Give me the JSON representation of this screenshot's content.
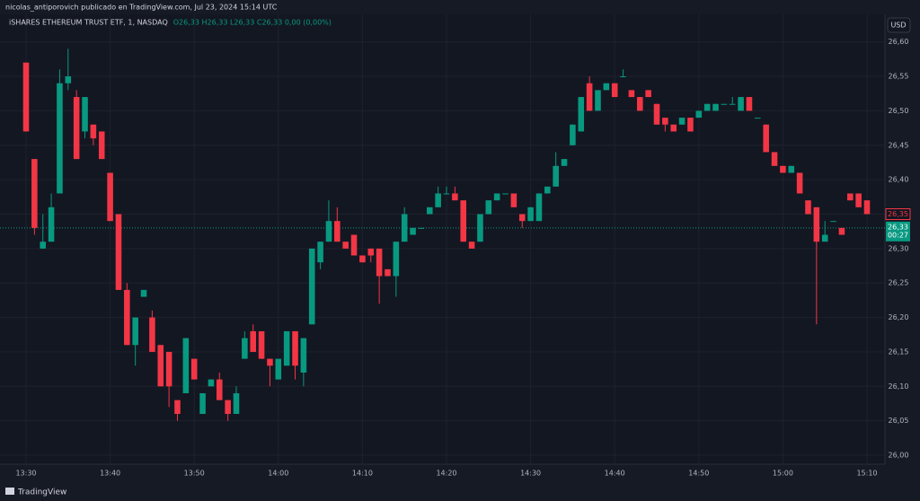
{
  "header": "nicolas_antiporovich publicado en TradingView.com, Jul 23, 2024 15:14 UTC",
  "footer": "TradingView",
  "chart_data": {
    "type": "candlestick",
    "title": "iSHARES ETHEREUM TRUST ETF, 1, NASDAQ",
    "ohlc_legend": "O26,33 H26,33 L26,33 C26,33 0,00 (0,00%)",
    "currency": "USD",
    "up_color": "#089981",
    "down_color": "#f23645",
    "grid": true,
    "categories": [
      "13:30",
      null,
      null,
      null,
      null,
      null,
      null,
      null,
      null,
      null,
      "13:40",
      null,
      null,
      null,
      null,
      null,
      null,
      null,
      null,
      null,
      "13:50",
      null,
      null,
      null,
      null,
      null,
      null,
      null,
      null,
      null,
      "14:00",
      null,
      null,
      null,
      null,
      null,
      null,
      null,
      null,
      null,
      "14:10",
      null,
      null,
      null,
      null,
      null,
      null,
      null,
      null,
      null,
      "14:20",
      null,
      null,
      null,
      null,
      null,
      null,
      null,
      null,
      null,
      "14:30",
      null,
      null,
      null,
      null,
      null,
      null,
      null,
      null,
      null,
      "14:40",
      null,
      null,
      null,
      null,
      null,
      null,
      null,
      null,
      null,
      "14:50",
      null,
      null,
      null,
      null,
      null,
      null,
      null,
      null,
      null,
      "15:00",
      null,
      null,
      null,
      null,
      null,
      null,
      null,
      null,
      null,
      "15:10"
    ],
    "open": [
      26.57,
      26.43,
      26.3,
      26.31,
      26.38,
      26.54,
      26.52,
      26.47,
      26.48,
      26.47,
      26.41,
      26.35,
      26.24,
      26.16,
      26.23,
      26.2,
      26.16,
      26.15,
      26.08,
      26.09,
      26.14,
      26.06,
      26.1,
      26.11,
      26.08,
      26.06,
      26.14,
      26.18,
      26.18,
      26.14,
      26.11,
      26.13,
      26.18,
      26.12,
      26.19,
      26.28,
      26.31,
      26.34,
      26.31,
      26.32,
      26.29,
      26.3,
      26.3,
      26.27,
      26.26,
      26.31,
      26.32,
      26.33,
      26.35,
      26.36,
      26.38,
      26.38,
      26.37,
      26.31,
      26.31,
      26.35,
      26.37,
      26.38,
      26.38,
      26.35,
      26.34,
      26.34,
      26.38,
      26.39,
      26.42,
      26.45,
      26.47,
      26.54,
      26.5,
      26.53,
      26.54,
      26.55,
      26.53,
      26.52,
      26.53,
      26.51,
      26.49,
      26.48,
      26.48,
      26.49,
      26.49,
      26.5,
      26.5,
      26.51,
      26.51,
      26.5,
      26.52,
      26.49,
      26.48,
      26.44,
      26.42,
      26.41,
      26.41,
      26.37,
      26.36,
      26.31,
      26.34,
      26.33,
      26.38,
      26.38,
      26.37
    ],
    "high": [
      26.57,
      26.43,
      26.35,
      26.38,
      26.56,
      26.59,
      26.53,
      26.52,
      26.48,
      26.47,
      26.41,
      26.35,
      26.25,
      26.2,
      26.24,
      26.21,
      26.16,
      26.15,
      26.08,
      26.17,
      26.14,
      26.09,
      26.11,
      26.12,
      26.08,
      26.1,
      26.18,
      26.19,
      26.18,
      26.14,
      26.14,
      26.18,
      26.18,
      26.17,
      26.3,
      26.31,
      26.37,
      26.36,
      26.31,
      26.32,
      26.29,
      26.3,
      26.3,
      26.27,
      26.31,
      26.36,
      26.33,
      26.33,
      26.36,
      26.39,
      26.39,
      26.39,
      26.37,
      26.31,
      26.35,
      26.37,
      26.38,
      26.38,
      26.38,
      26.35,
      26.36,
      26.38,
      26.39,
      26.44,
      26.43,
      26.48,
      26.52,
      26.55,
      26.53,
      26.54,
      26.54,
      26.56,
      26.53,
      26.52,
      26.53,
      26.51,
      26.49,
      26.48,
      26.49,
      26.49,
      26.5,
      26.51,
      26.51,
      26.51,
      26.52,
      26.52,
      26.52,
      26.49,
      26.48,
      26.44,
      26.42,
      26.42,
      26.41,
      26.37,
      26.36,
      26.34,
      26.34,
      26.33,
      26.38,
      26.38,
      26.37
    ],
    "low": [
      26.47,
      26.32,
      26.3,
      26.31,
      26.38,
      26.53,
      26.43,
      26.46,
      26.45,
      26.43,
      26.34,
      26.24,
      26.16,
      26.13,
      26.23,
      26.15,
      26.1,
      26.07,
      26.05,
      26.09,
      26.11,
      26.06,
      26.1,
      26.08,
      26.05,
      26.06,
      26.14,
      26.15,
      26.14,
      26.1,
      26.11,
      26.13,
      26.11,
      26.1,
      26.19,
      26.27,
      26.31,
      26.31,
      26.3,
      26.29,
      26.28,
      26.28,
      26.22,
      26.26,
      26.23,
      26.31,
      26.32,
      26.33,
      26.35,
      26.36,
      26.38,
      26.37,
      26.31,
      26.3,
      26.31,
      26.35,
      26.37,
      26.38,
      26.36,
      26.33,
      26.34,
      26.34,
      26.38,
      26.39,
      26.42,
      26.45,
      26.47,
      26.5,
      26.5,
      26.53,
      26.52,
      26.55,
      26.52,
      26.5,
      26.52,
      26.48,
      26.47,
      26.47,
      26.48,
      26.47,
      26.49,
      26.5,
      26.5,
      26.51,
      26.51,
      26.5,
      26.5,
      26.49,
      26.44,
      26.42,
      26.41,
      26.41,
      26.38,
      26.35,
      26.19,
      26.31,
      26.34,
      26.32,
      26.37,
      26.36,
      26.35
    ],
    "close": [
      26.47,
      26.33,
      26.31,
      26.36,
      26.54,
      26.55,
      26.43,
      26.52,
      26.46,
      26.43,
      26.34,
      26.24,
      26.16,
      26.2,
      26.24,
      26.15,
      26.1,
      26.1,
      26.06,
      26.17,
      26.11,
      26.09,
      26.11,
      26.08,
      26.06,
      26.09,
      26.17,
      26.15,
      26.14,
      26.13,
      26.14,
      26.18,
      26.13,
      26.17,
      26.3,
      26.31,
      26.34,
      26.31,
      26.3,
      26.29,
      26.28,
      26.29,
      26.26,
      26.26,
      26.31,
      26.35,
      26.33,
      26.33,
      26.36,
      26.38,
      26.38,
      26.37,
      26.31,
      26.3,
      26.35,
      26.37,
      26.38,
      26.38,
      26.36,
      26.34,
      26.36,
      26.38,
      26.39,
      26.42,
      26.43,
      26.48,
      26.52,
      26.5,
      26.53,
      26.54,
      26.52,
      26.55,
      26.52,
      26.5,
      26.52,
      26.48,
      26.48,
      26.47,
      26.49,
      26.47,
      26.5,
      26.51,
      26.51,
      26.51,
      26.51,
      26.52,
      26.5,
      26.49,
      26.44,
      26.42,
      26.41,
      26.42,
      26.38,
      26.35,
      26.31,
      26.32,
      26.34,
      26.32,
      26.37,
      26.36,
      26.35
    ],
    "ylim": [
      25.987,
      26.64
    ],
    "yticks": [
      {
        "value": 26.0,
        "label": "26,00"
      },
      {
        "value": 26.05,
        "label": "26,05"
      },
      {
        "value": 26.1,
        "label": "26,10"
      },
      {
        "value": 26.15,
        "label": "26,15"
      },
      {
        "value": 26.2,
        "label": "26,20"
      },
      {
        "value": 26.25,
        "label": "26,25"
      },
      {
        "value": 26.3,
        "label": "26,30"
      },
      {
        "value": 26.35,
        "label": "26,35"
      },
      {
        "value": 26.4,
        "label": "26,40"
      },
      {
        "value": 26.45,
        "label": "26,45"
      },
      {
        "value": 26.5,
        "label": "26,50"
      },
      {
        "value": 26.55,
        "label": "26,55"
      },
      {
        "value": 26.6,
        "label": "26,60"
      }
    ],
    "last_price": {
      "value": 26.33,
      "label": "26,33"
    },
    "countdown": "00:27",
    "prev_close": {
      "value": 26.35,
      "label": "26,35"
    }
  }
}
